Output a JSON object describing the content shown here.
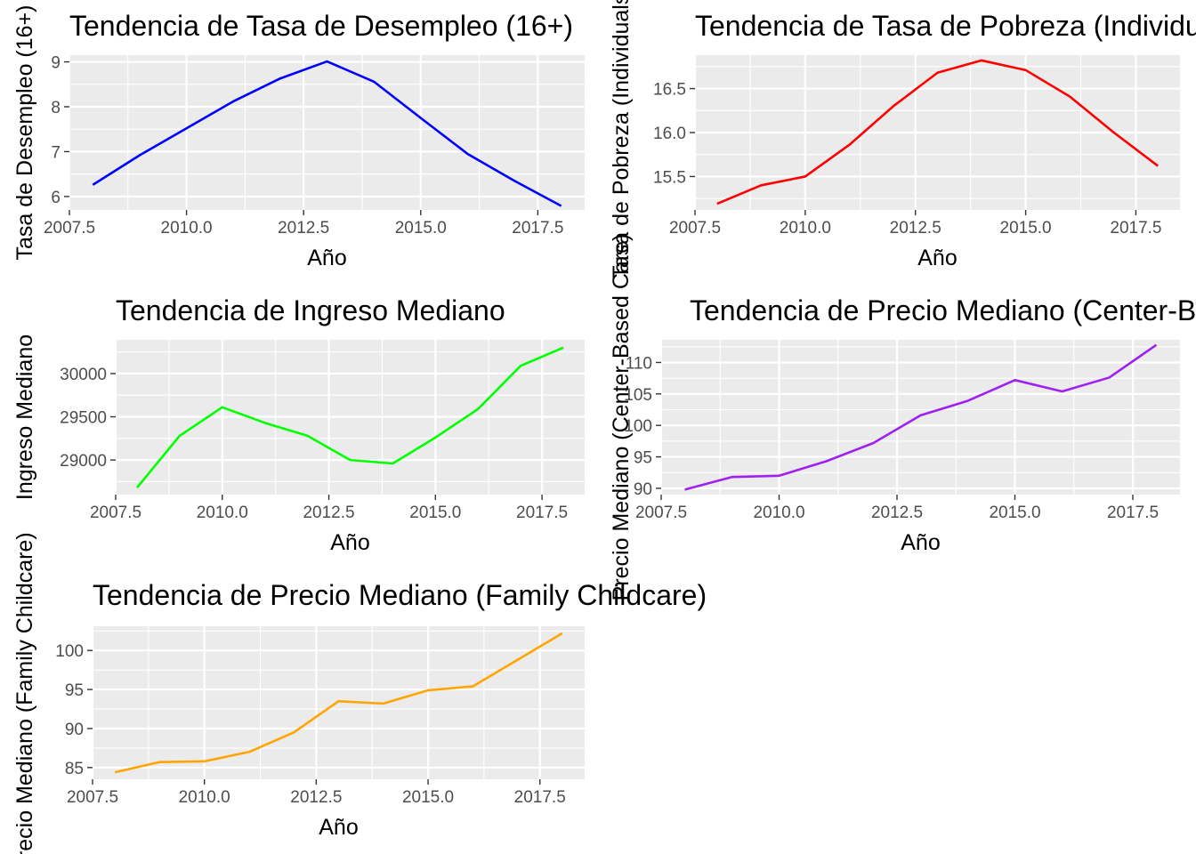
{
  "chart_data": [
    {
      "type": "line",
      "title": "Tendencia de Tasa de Desempleo (16+)",
      "xlabel": "Año",
      "ylabel": "Tasa de Desempleo (16+)",
      "x": [
        2008,
        2009,
        2010,
        2011,
        2012,
        2013,
        2014,
        2015,
        2016,
        2017,
        2018
      ],
      "series": [
        {
          "values": [
            6.26,
            6.92,
            7.52,
            8.12,
            8.63,
            9.01,
            8.56,
            7.75,
            6.95,
            6.35,
            5.79
          ],
          "color": "#0000ff"
        }
      ],
      "xlim": [
        2007.5,
        2018.5
      ],
      "ylim": [
        5.7,
        9.15
      ],
      "xticks": [
        2007.5,
        2010.0,
        2012.5,
        2015.0,
        2017.5
      ],
      "xtick_labels": [
        "2007.5",
        "2010.0",
        "2012.5",
        "2015.0",
        "2017.5"
      ],
      "yticks": [
        6,
        7,
        8,
        9
      ],
      "ytick_labels": [
        "6",
        "7",
        "8",
        "9"
      ],
      "grid": true
    },
    {
      "type": "line",
      "title": "Tendencia de Tasa de Pobreza (Individuals)",
      "xlabel": "Año",
      "ylabel": "Tasa de Pobreza (Individuals)",
      "x": [
        2008,
        2009,
        2010,
        2011,
        2012,
        2013,
        2014,
        2015,
        2016,
        2017,
        2018
      ],
      "series": [
        {
          "values": [
            15.19,
            15.4,
            15.5,
            15.86,
            16.3,
            16.68,
            16.82,
            16.71,
            16.41,
            16.0,
            15.62
          ],
          "color": "#ff0000"
        }
      ],
      "xlim": [
        2007.5,
        2018.5
      ],
      "ylim": [
        15.12,
        16.88
      ],
      "xticks": [
        2007.5,
        2010.0,
        2012.5,
        2015.0,
        2017.5
      ],
      "xtick_labels": [
        "2007.5",
        "2010.0",
        "2012.5",
        "2015.0",
        "2017.5"
      ],
      "yticks": [
        15.5,
        16.0,
        16.5
      ],
      "ytick_labels": [
        "15.5",
        "16.0",
        "16.5"
      ],
      "grid": true
    },
    {
      "type": "line",
      "title": "Tendencia de Ingreso Mediano",
      "xlabel": "Año",
      "ylabel": "Ingreso Mediano",
      "x": [
        2008,
        2009,
        2010,
        2011,
        2012,
        2013,
        2014,
        2015,
        2016,
        2017,
        2018
      ],
      "series": [
        {
          "values": [
            28680,
            29280,
            29610,
            29430,
            29280,
            29000,
            28960,
            29260,
            29590,
            30090,
            30300
          ],
          "color": "#00ff00"
        }
      ],
      "xlim": [
        2007.5,
        2018.5
      ],
      "ylim": [
        28600,
        30390
      ],
      "xticks": [
        2007.5,
        2010.0,
        2012.5,
        2015.0,
        2017.5
      ],
      "xtick_labels": [
        "2007.5",
        "2010.0",
        "2012.5",
        "2015.0",
        "2017.5"
      ],
      "yticks": [
        29000,
        29500,
        30000
      ],
      "ytick_labels": [
        "29000",
        "29500",
        "30000"
      ],
      "grid": true
    },
    {
      "type": "line",
      "title": "Tendencia de Precio Mediano (Center-Based Care)",
      "xlabel": "Año",
      "ylabel": "Precio Mediano (Center-Based Care)",
      "x": [
        2008,
        2009,
        2010,
        2011,
        2012,
        2013,
        2014,
        2015,
        2016,
        2017,
        2018
      ],
      "series": [
        {
          "values": [
            89.8,
            91.8,
            92.0,
            94.3,
            97.2,
            101.6,
            103.9,
            107.2,
            105.4,
            107.6,
            112.8
          ],
          "color": "#a020f0"
        }
      ],
      "xlim": [
        2007.5,
        2018.5
      ],
      "ylim": [
        89.0,
        113.6
      ],
      "xticks": [
        2007.5,
        2010.0,
        2012.5,
        2015.0,
        2017.5
      ],
      "xtick_labels": [
        "2007.5",
        "2010.0",
        "2012.5",
        "2015.0",
        "2017.5"
      ],
      "yticks": [
        90,
        95,
        100,
        105,
        110
      ],
      "ytick_labels": [
        "90",
        "95",
        "100",
        "105",
        "110"
      ],
      "grid": true
    },
    {
      "type": "line",
      "title": "Tendencia de Precio Mediano (Family Childcare)",
      "xlabel": "Año",
      "ylabel": "Precio Mediano (Family Childcare)",
      "x": [
        2008,
        2009,
        2010,
        2011,
        2012,
        2013,
        2014,
        2015,
        2016,
        2017,
        2018
      ],
      "series": [
        {
          "values": [
            84.4,
            85.7,
            85.8,
            87.0,
            89.5,
            93.5,
            93.2,
            94.9,
            95.4,
            98.8,
            102.2
          ],
          "color": "#ffa500"
        }
      ],
      "xlim": [
        2007.5,
        2018.5
      ],
      "ylim": [
        83.5,
        103.1
      ],
      "xticks": [
        2007.5,
        2010.0,
        2012.5,
        2015.0,
        2017.5
      ],
      "xtick_labels": [
        "2007.5",
        "2010.0",
        "2012.5",
        "2015.0",
        "2017.5"
      ],
      "yticks": [
        85,
        90,
        95,
        100
      ],
      "ytick_labels": [
        "85",
        "90",
        "95",
        "100"
      ],
      "grid": true
    }
  ]
}
